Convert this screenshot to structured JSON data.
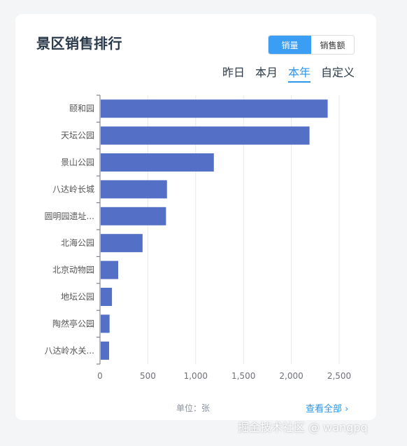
{
  "card": {
    "title": "景区销售排行",
    "metric_toggle": [
      "销量",
      "销售额"
    ],
    "metric_active_index": 0,
    "periods": [
      "昨日",
      "本月",
      "本年",
      "自定义"
    ],
    "period_active_index": 2,
    "unit_label": "单位：张",
    "view_all_label": "查看全部",
    "view_all_icon": "chevron-right-icon"
  },
  "watermark": "掘金技术社区 @ wangpq",
  "chart_data": {
    "type": "bar",
    "orientation": "horizontal",
    "categories": [
      "颐和园",
      "天坛公园",
      "景山公园",
      "八达岭长城",
      "圆明园遗址...",
      "北海公园",
      "北京动物园",
      "地坛公园",
      "陶然亭公园",
      "八达岭水关..."
    ],
    "values": [
      2380,
      2190,
      1190,
      700,
      690,
      445,
      190,
      125,
      100,
      95
    ],
    "xlim": [
      0,
      2500
    ],
    "xticks": [
      0,
      500,
      1000,
      1500,
      2000,
      2500
    ],
    "xtick_labels": [
      "0",
      "500",
      "1,000",
      "1,500",
      "2,000",
      "2,500"
    ],
    "bar_color": "#5470c6",
    "grid": true
  }
}
